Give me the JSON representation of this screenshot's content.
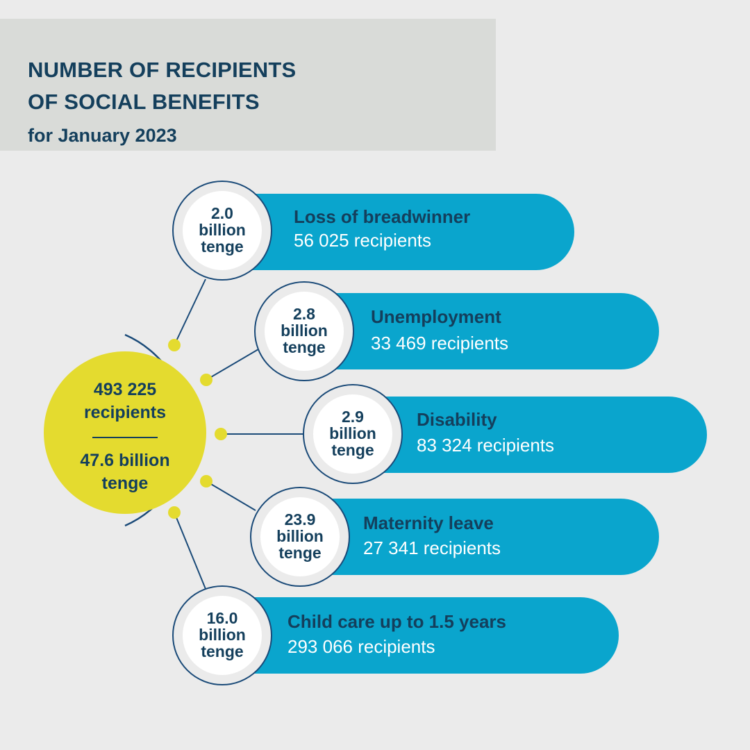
{
  "header": {
    "title_line1": "NUMBER OF RECIPIENTS",
    "title_line2": "OF SOCIAL BENEFITS",
    "subtitle": "for January 2023"
  },
  "total": {
    "recipients": "493 225",
    "recipients_label": "recipients",
    "amount": "47.6 billion",
    "amount_unit": "tenge"
  },
  "benefits": [
    {
      "amount": "2.0",
      "unit1": "billion",
      "unit2": "tenge",
      "name": "Loss of breadwinner",
      "recipients": "56 025 recipients"
    },
    {
      "amount": "2.8",
      "unit1": "billion",
      "unit2": "tenge",
      "name": "Unemployment",
      "recipients": "33 469 recipients"
    },
    {
      "amount": "2.9",
      "unit1": "billion",
      "unit2": "tenge",
      "name": "Disability",
      "recipients": "83 324 recipients"
    },
    {
      "amount": "23.9",
      "unit1": "billion",
      "unit2": "tenge",
      "name": "Maternity leave",
      "recipients": "27 341 recipients"
    },
    {
      "amount": "16.0",
      "unit1": "billion",
      "unit2": "tenge",
      "name": "Child care up to 1.5 years",
      "recipients": "293 066 recipients"
    }
  ],
  "colors": {
    "navy": "#143f5c",
    "cyan": "#0aa5cd",
    "yellow": "#e4db2f",
    "header_bg": "#d9dbd8",
    "page_bg": "#ebebeb"
  }
}
